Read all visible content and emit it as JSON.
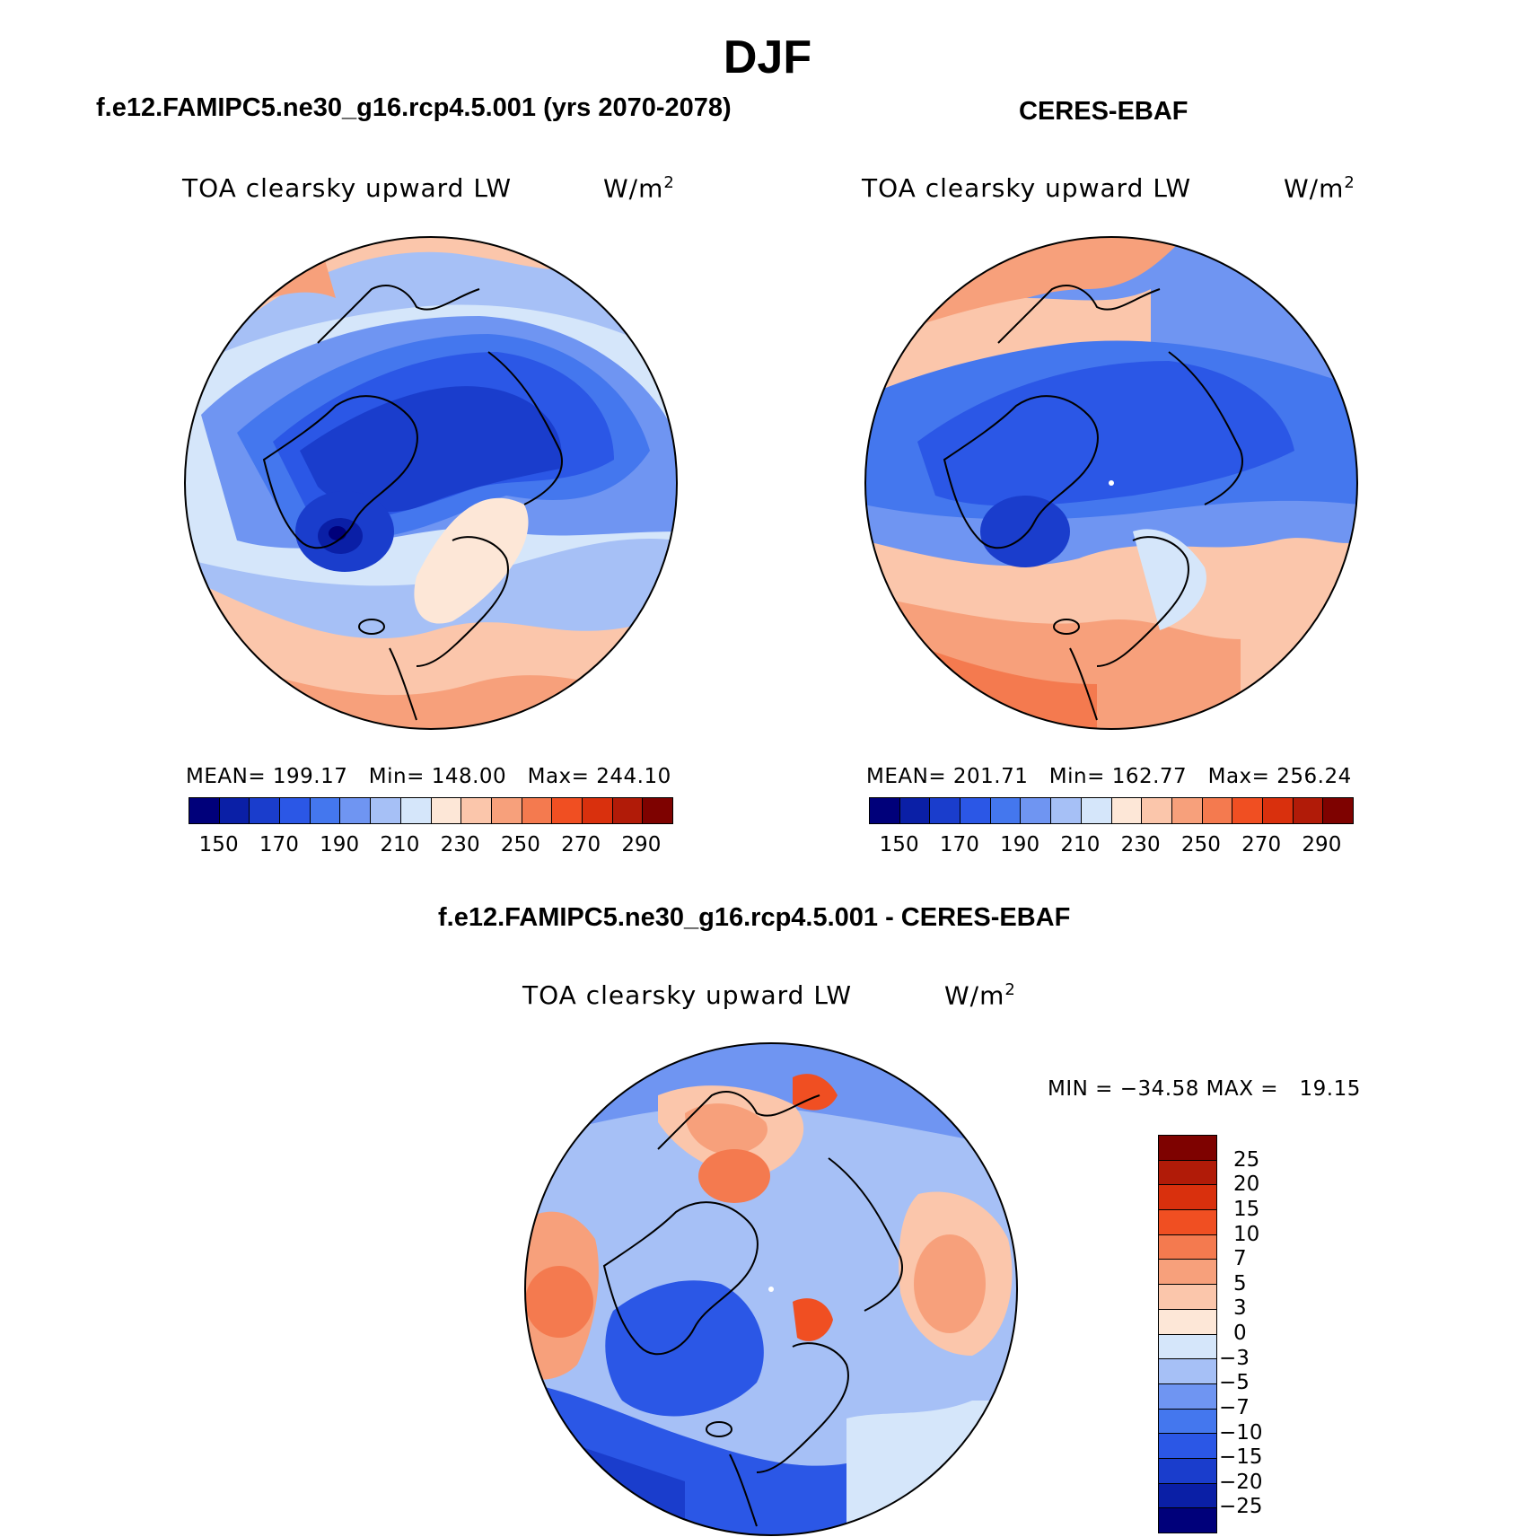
{
  "title": "DJF",
  "panels": [
    {
      "case": "f.e12.FAMIPC5.ne30_g16.rcp4.5.001 (yrs 2070-2078)",
      "variable": "TOA clearsky upward LW",
      "units_base": "W/m",
      "units_exp": "2",
      "stats": "MEAN= 199.17   Min= 148.00   Max= 244.10"
    },
    {
      "case": "CERES-EBAF",
      "variable": "TOA clearsky upward LW",
      "units_base": "W/m",
      "units_exp": "2",
      "stats": "MEAN= 201.71   Min= 162.77   Max= 256.24"
    }
  ],
  "diff_panel": {
    "case": "f.e12.FAMIPC5.ne30_g16.rcp4.5.001 - CERES-EBAF",
    "variable": "TOA clearsky upward LW",
    "units_base": "W/m",
    "units_exp": "2",
    "stats": "MIN = −34.58 MAX =   19.15"
  },
  "colorbar_abs": {
    "colors": [
      "#00007a",
      "#0a1fa6",
      "#1a3dcc",
      "#2b57e6",
      "#4477ee",
      "#6f95f2",
      "#a6c0f6",
      "#d5e6fa",
      "#fde7d7",
      "#fbc6ab",
      "#f7a07b",
      "#f47a4f",
      "#f04f22",
      "#d9300d",
      "#b11b08",
      "#7e0200"
    ],
    "ticks": [
      "150",
      "170",
      "190",
      "210",
      "230",
      "250",
      "270",
      "290"
    ]
  },
  "colorbar_diff": {
    "colors": [
      "#7e0200",
      "#b11b08",
      "#d9300d",
      "#f04f22",
      "#f47a4f",
      "#f7a07b",
      "#fbc6ab",
      "#fde7d7",
      "#d5e6fa",
      "#a6c0f6",
      "#6f95f2",
      "#4477ee",
      "#2b57e6",
      "#1a3dcc",
      "#0a1fa6",
      "#00007a"
    ],
    "ticks": [
      "25",
      "20",
      "15",
      "10",
      "7",
      "5",
      "3",
      "0",
      "−3",
      "−5",
      "−7",
      "−10",
      "−15",
      "−20",
      "−25"
    ]
  }
}
